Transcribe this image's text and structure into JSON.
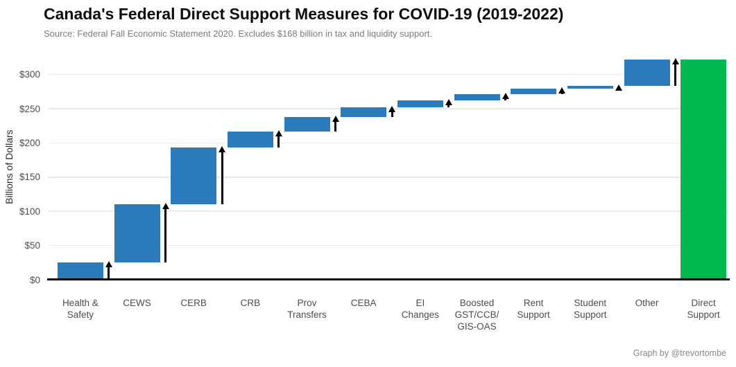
{
  "header": {
    "title": "Canada's Federal Direct Support Measures for COVID-19 (2019-2022)",
    "subtitle": "Source: Federal Fall Economic Statement 2020. Excludes $168 billion in tax and liquidity support."
  },
  "footer": {
    "caption": "Graph by @trevortombe"
  },
  "chart_data": {
    "type": "bar",
    "subtype": "waterfall",
    "title": "Canada's Federal Direct Support Measures for COVID-19 (2019-2022)",
    "xlabel": "",
    "ylabel": "Billions of Dollars",
    "ylim": [
      0,
      330
    ],
    "grid": "horizontal-major-only",
    "legend": "none",
    "total": 322,
    "categories": [
      "Health & Safety",
      "CEWS",
      "CERB",
      "CRB",
      "Prov Transfers",
      "CEBA",
      "EI Changes",
      "Boosted GST/CCB/GIS-OAS",
      "Rent Support",
      "Student Support",
      "Other",
      "Direct Support"
    ],
    "y_ticks": [
      {
        "value": 0,
        "label": "$0"
      },
      {
        "value": 50,
        "label": "$50"
      },
      {
        "value": 100,
        "label": "$100"
      },
      {
        "value": 150,
        "label": "$150"
      },
      {
        "value": 200,
        "label": "$200"
      },
      {
        "value": 250,
        "label": "$250"
      },
      {
        "value": 300,
        "label": "$300"
      }
    ],
    "bars": [
      {
        "category": "Health & Safety",
        "label_lines": [
          "Health &",
          "Safety"
        ],
        "value": 25,
        "cumulative_start": 0,
        "cumulative_end": 25,
        "role": "increase",
        "arrow": true
      },
      {
        "category": "CEWS",
        "label_lines": [
          "CEWS"
        ],
        "value": 85,
        "cumulative_start": 25,
        "cumulative_end": 110,
        "role": "increase",
        "arrow": true
      },
      {
        "category": "CERB",
        "label_lines": [
          "CERB"
        ],
        "value": 83,
        "cumulative_start": 110,
        "cumulative_end": 193,
        "role": "increase",
        "arrow": true
      },
      {
        "category": "CRB",
        "label_lines": [
          "CRB"
        ],
        "value": 24,
        "cumulative_start": 193,
        "cumulative_end": 217,
        "role": "increase",
        "arrow": true
      },
      {
        "category": "Prov Transfers",
        "label_lines": [
          "Prov",
          "Transfers"
        ],
        "value": 21,
        "cumulative_start": 217,
        "cumulative_end": 238,
        "role": "increase",
        "arrow": true
      },
      {
        "category": "CEBA",
        "label_lines": [
          "CEBA"
        ],
        "value": 14,
        "cumulative_start": 238,
        "cumulative_end": 252,
        "role": "increase",
        "arrow": true
      },
      {
        "category": "EI Changes",
        "label_lines": [
          "EI",
          "Changes"
        ],
        "value": 10,
        "cumulative_start": 252,
        "cumulative_end": 262,
        "role": "increase",
        "arrow": true
      },
      {
        "category": "Boosted GST/CCB/GIS-OAS",
        "label_lines": [
          "Boosted",
          "GST/CCB/",
          "GIS-OAS"
        ],
        "value": 9,
        "cumulative_start": 262,
        "cumulative_end": 271,
        "role": "increase",
        "arrow": true
      },
      {
        "category": "Rent Support",
        "label_lines": [
          "Rent",
          "Support"
        ],
        "value": 8,
        "cumulative_start": 271,
        "cumulative_end": 279,
        "role": "increase",
        "arrow": true
      },
      {
        "category": "Student Support",
        "label_lines": [
          "Student",
          "Support"
        ],
        "value": 4,
        "cumulative_start": 279,
        "cumulative_end": 283,
        "role": "increase",
        "arrow": true
      },
      {
        "category": "Other",
        "label_lines": [
          "Other"
        ],
        "value": 39,
        "cumulative_start": 283,
        "cumulative_end": 322,
        "role": "increase",
        "arrow": true
      },
      {
        "category": "Direct Support",
        "label_lines": [
          "Direct",
          "Support"
        ],
        "value": 322,
        "cumulative_start": 0,
        "cumulative_end": 322,
        "role": "total",
        "arrow": false
      }
    ],
    "colors": {
      "increase_bar": "#2b7bba",
      "total_bar": "#00b64f",
      "arrow": "#000000",
      "gridline": "#e9e9e9",
      "axis_line": "#000000",
      "tick_text": "#4c4c4c",
      "title_text": "#0d0d0d",
      "subtitle_text": "#7b7b7b",
      "caption_text": "#868686"
    },
    "annotations": "black vertical arrows mark each incremental step up"
  }
}
